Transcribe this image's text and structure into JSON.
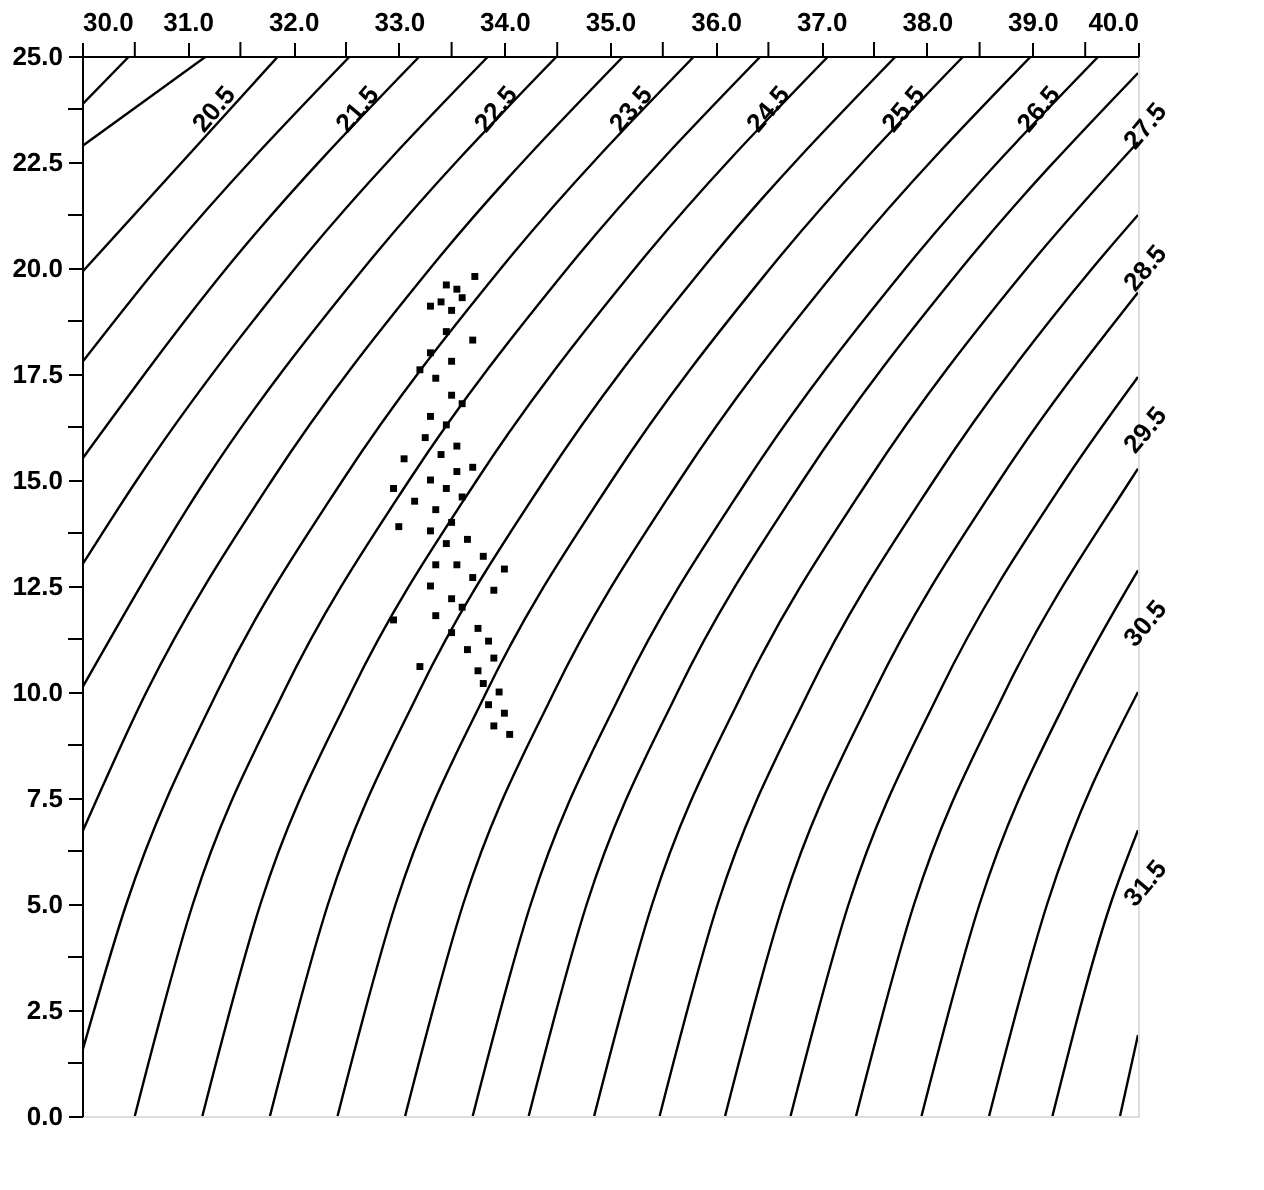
{
  "chart_data": {
    "type": "line",
    "xlim": [
      30.0,
      40.0
    ],
    "ylim": [
      0.0,
      25.0
    ],
    "xticks": [
      {
        "value": 30,
        "label": "30.0"
      },
      {
        "value": 30.5,
        "label": null
      },
      {
        "value": 31,
        "label": "31.0"
      },
      {
        "value": 31.5,
        "label": null
      },
      {
        "value": 32,
        "label": "32.0"
      },
      {
        "value": 32.5,
        "label": null
      },
      {
        "value": 33,
        "label": "33.0"
      },
      {
        "value": 33.5,
        "label": null
      },
      {
        "value": 34,
        "label": "34.0"
      },
      {
        "value": 34.5,
        "label": null
      },
      {
        "value": 35,
        "label": "35.0"
      },
      {
        "value": 35.5,
        "label": null
      },
      {
        "value": 36,
        "label": "36.0"
      },
      {
        "value": 36.5,
        "label": null
      },
      {
        "value": 37,
        "label": "37.0"
      },
      {
        "value": 37.5,
        "label": null
      },
      {
        "value": 38,
        "label": "38.0"
      },
      {
        "value": 38.5,
        "label": null
      },
      {
        "value": 39,
        "label": "39.0"
      },
      {
        "value": 39.5,
        "label": null
      },
      {
        "value": 40,
        "label": "40.0"
      }
    ],
    "yticks": [
      {
        "value": 0,
        "label": "0.0"
      },
      {
        "value": 1.25,
        "label": null
      },
      2.5,
      {
        "value": 3.75,
        "label": null
      },
      {
        "value": 5,
        "label": "5.0"
      },
      {
        "value": 6.25,
        "label": null
      },
      7.5,
      {
        "value": 8.75,
        "label": null
      },
      {
        "value": 10,
        "label": "10.0"
      },
      {
        "value": 11.25,
        "label": null
      },
      12.5,
      {
        "value": 13.75,
        "label": null
      },
      {
        "value": 15,
        "label": "15.0"
      },
      {
        "value": 16.25,
        "label": null
      },
      17.5,
      {
        "value": 18.75,
        "label": null
      },
      {
        "value": 20,
        "label": "20.0"
      },
      {
        "value": 21.25,
        "label": null
      },
      22.5,
      {
        "value": 23.75,
        "label": null
      },
      {
        "value": 25,
        "label": "25.0"
      }
    ],
    "series": [
      {
        "color": "#000000",
        "x": [
          30,
          30.45
        ],
        "values": [
          23.85,
          25
        ]
      },
      {
        "name": "20.5",
        "color": "#000000",
        "x": [
          30,
          31.18
        ],
        "values": [
          22.87,
          25
        ]
      },
      {
        "color": "#000000",
        "x": [
          30,
          31.86
        ],
        "values": [
          19.9,
          25
        ]
      },
      {
        "name": "21.5",
        "color": "#000000",
        "x": [
          30,
          30.71,
          32.54
        ],
        "values": [
          17.77,
          20,
          25
        ]
      },
      {
        "color": "#000000",
        "x": [
          30,
          31.37,
          33.2
        ],
        "values": [
          15.49,
          20,
          25
        ]
      },
      {
        "name": "22.5",
        "color": "#000000",
        "x": [
          30,
          30.52,
          32.02,
          33.85
        ],
        "values": [
          12.99,
          15,
          20,
          25
        ]
      },
      {
        "color": "#000000",
        "x": [
          30,
          31.17,
          32.67,
          34.5
        ],
        "values": [
          10.09,
          15,
          20,
          25
        ]
      },
      {
        "name": "23.5",
        "color": "#000000",
        "x": [
          30,
          30.61,
          31.8,
          33.3,
          35.13
        ],
        "values": [
          6.68,
          10,
          15,
          20,
          25
        ]
      },
      {
        "color": "#000000",
        "x": [
          30,
          30.42,
          31.28,
          32.47,
          33.97,
          35.8
        ],
        "values": [
          1.5,
          5,
          10,
          15,
          20,
          25
        ]
      },
      {
        "name": "24.5",
        "color": "#000000",
        "x": [
          30.5,
          31.05,
          31.91,
          33.1,
          34.6,
          36.43
        ],
        "values": [
          0,
          5,
          10,
          15,
          20,
          25
        ]
      },
      {
        "color": "#000000",
        "x": [
          31.14,
          31.69,
          32.55,
          33.74,
          35.24,
          37.07
        ],
        "values": [
          0,
          5,
          10,
          15,
          20,
          25
        ]
      },
      {
        "name": "25.5",
        "color": "#000000",
        "x": [
          31.78,
          32.33,
          33.19,
          34.38,
          35.88,
          37.71
        ],
        "values": [
          0,
          5,
          10,
          15,
          20,
          25
        ]
      },
      {
        "color": "#000000",
        "x": [
          32.42,
          32.97,
          33.83,
          35.02,
          36.52,
          38.35
        ],
        "values": [
          0,
          5,
          10,
          15,
          20,
          25
        ]
      },
      {
        "name": "26.5",
        "color": "#000000",
        "x": [
          33.06,
          33.61,
          34.47,
          35.66,
          37.16,
          38.99
        ],
        "values": [
          0,
          5,
          10,
          15,
          20,
          25
        ]
      },
      {
        "color": "#000000",
        "x": [
          33.7,
          34.25,
          35.11,
          36.3,
          37.8,
          39.63
        ],
        "values": [
          0,
          5,
          10,
          15,
          20,
          25
        ]
      },
      {
        "name": "27.5",
        "color": "#000000",
        "x": [
          34.23,
          34.78,
          35.64,
          36.83,
          38.33,
          40
        ],
        "values": [
          0,
          5,
          10,
          15,
          20,
          24.6
        ]
      },
      {
        "color": "#000000",
        "x": [
          34.85,
          35.4,
          36.26,
          37.45,
          38.95,
          40
        ],
        "values": [
          0,
          5,
          10,
          15,
          20,
          22.97
        ]
      },
      {
        "name": "28.5",
        "color": "#000000",
        "x": [
          35.47,
          36.02,
          36.88,
          38.07,
          39.57,
          40
        ],
        "values": [
          0,
          5,
          10,
          15,
          20,
          21.25
        ]
      },
      {
        "color": "#000000",
        "x": [
          36.09,
          36.64,
          37.5,
          38.69,
          40
        ],
        "values": [
          0,
          5,
          10,
          15,
          19.42
        ]
      },
      {
        "name": "29.5",
        "color": "#000000",
        "x": [
          36.71,
          37.26,
          38.12,
          39.31,
          40
        ],
        "values": [
          0,
          5,
          10,
          15,
          17.43
        ]
      },
      {
        "color": "#000000",
        "x": [
          37.33,
          37.88,
          38.74,
          39.93,
          40
        ],
        "values": [
          0,
          5,
          10,
          15,
          15.27
        ]
      },
      {
        "name": "30.5",
        "color": "#000000",
        "x": [
          37.95,
          38.5,
          39.36,
          40
        ],
        "values": [
          0,
          5,
          10,
          12.87
        ]
      },
      {
        "color": "#000000",
        "x": [
          38.59,
          39.14,
          40
        ],
        "values": [
          0,
          5,
          10
        ]
      },
      {
        "name": "31.5",
        "color": "#000000",
        "x": [
          39.19,
          39.74,
          40
        ],
        "values": [
          0,
          5,
          6.74
        ]
      },
      {
        "color": "#000000",
        "x": [
          39.83,
          40
        ],
        "values": [
          0,
          1.91
        ]
      },
      {
        "type": "scatter",
        "marker": "square",
        "color": "#000000",
        "x": [
          33.45,
          33.6,
          33.55,
          33.4,
          33.5,
          33.72,
          33.3,
          33.45,
          33.7,
          33.3,
          33.2,
          33.35,
          33.5,
          33.6,
          33.3,
          33.45,
          33.25,
          33.55,
          33.4,
          33.05,
          33.7,
          33.3,
          33.45,
          33.6,
          32.95,
          33.35,
          33.5,
          33.3,
          33.65,
          33.45,
          33.8,
          33.55,
          33.35,
          33.7,
          33.3,
          33.9,
          33.5,
          33.6,
          33.35,
          32.95,
          33.75,
          33.5,
          33.85,
          33.65,
          33.9,
          33.2,
          33.75,
          33.8,
          33.95,
          33.85,
          34.0,
          33.9,
          34.05,
          33.0,
          33.55,
          34.0,
          33.5,
          33.15
        ],
        "values": [
          19.6,
          19.3,
          19.5,
          19.2,
          19.0,
          19.8,
          19.1,
          18.5,
          18.3,
          18.0,
          17.6,
          17.4,
          17.0,
          16.8,
          16.5,
          16.3,
          16.0,
          15.8,
          15.6,
          15.5,
          15.3,
          15.0,
          14.8,
          14.6,
          14.8,
          14.3,
          14.0,
          13.8,
          13.6,
          13.5,
          13.2,
          13.0,
          13.0,
          12.7,
          12.5,
          12.4,
          12.2,
          12.0,
          11.8,
          11.7,
          11.5,
          11.4,
          11.2,
          11.0,
          10.8,
          10.6,
          10.5,
          10.2,
          10.0,
          9.7,
          9.5,
          9.2,
          9.0,
          13.9,
          15.2,
          12.9,
          17.8,
          14.5
        ]
      }
    ]
  }
}
